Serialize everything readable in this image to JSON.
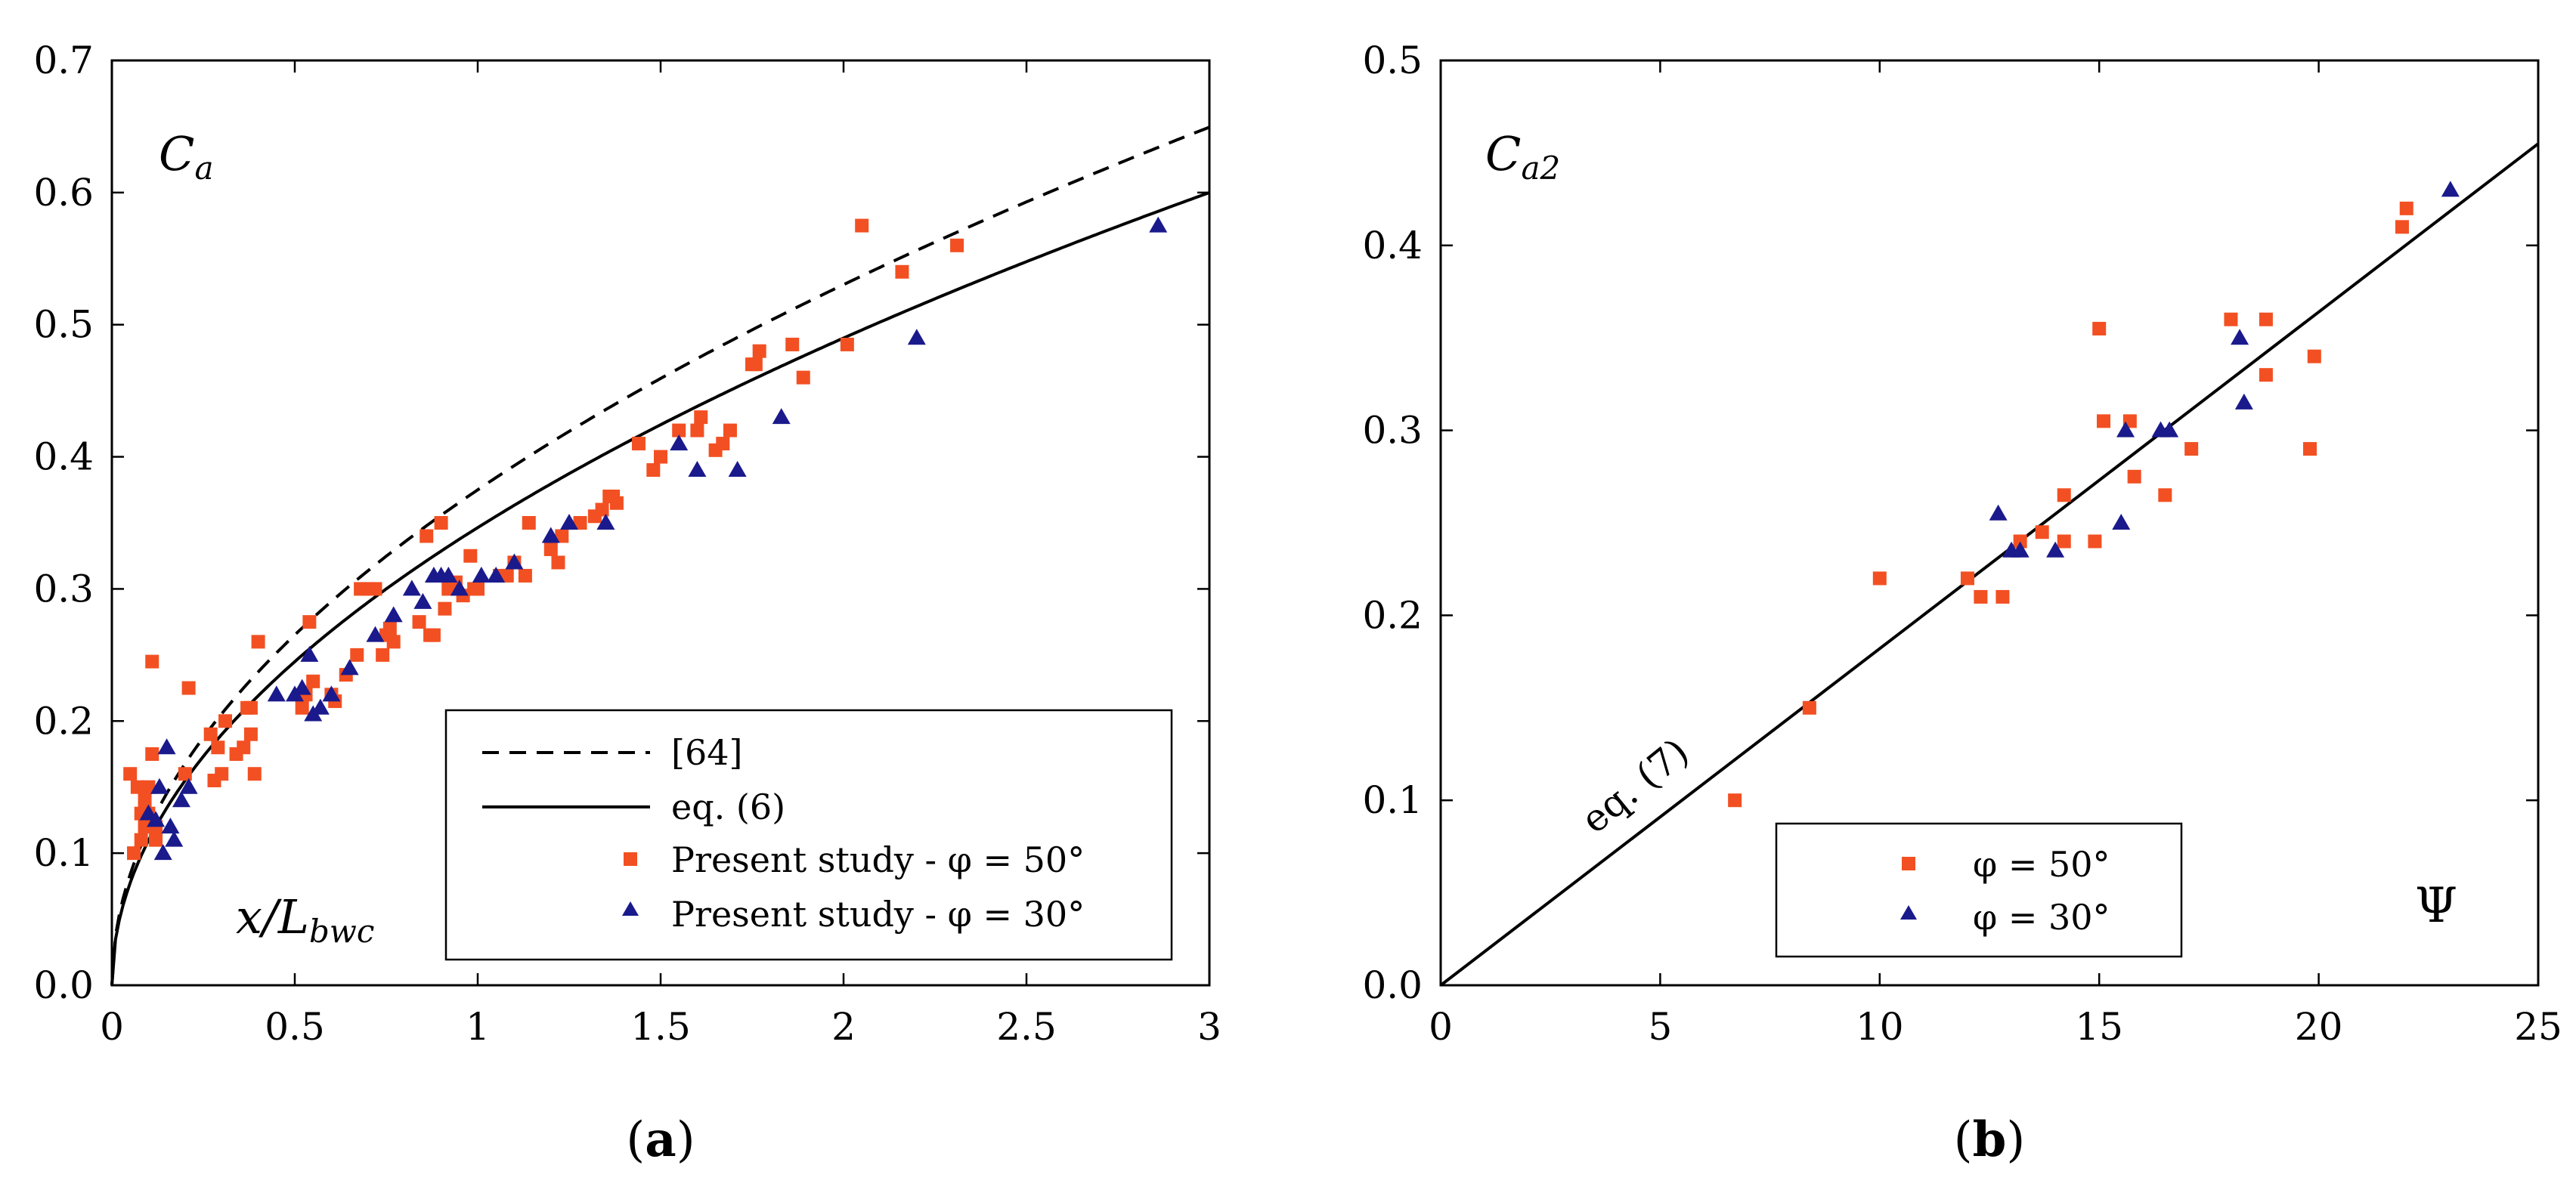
{
  "chart_data": [
    {
      "type": "scatter",
      "panel_label": "a",
      "corner_label": {
        "main": "C",
        "sub": "a"
      },
      "axis_label": {
        "main": "x/L",
        "sub": "bwc"
      },
      "xlim": [
        0,
        3
      ],
      "ylim": [
        0,
        0.7
      ],
      "xticks": [
        "0",
        "0.5",
        "1",
        "1.5",
        "2",
        "2.5",
        "3"
      ],
      "yticks": [
        "0.0",
        "0.1",
        "0.2",
        "0.3",
        "0.4",
        "0.5",
        "0.6",
        "0.7"
      ],
      "legend": [
        "[64]",
        "eq. (6)",
        "Present study - φ = 50°",
        "Present study - φ = 30°"
      ],
      "series": [
        {
          "name": "[64]",
          "kind": "curve",
          "style": "dashed",
          "coef": 0.375,
          "power": 0.5
        },
        {
          "name": "eq. (6)",
          "kind": "curve",
          "style": "solid",
          "coef": 0.3464,
          "power": 0.5
        },
        {
          "name": "Present study - φ = 50°",
          "kind": "points",
          "marker": "square",
          "color": "#f25022",
          "x": [
            0.05,
            0.06,
            0.07,
            0.08,
            0.08,
            0.09,
            0.09,
            0.1,
            0.1,
            0.11,
            0.11,
            0.12,
            0.12,
            0.2,
            0.21,
            0.27,
            0.28,
            0.29,
            0.3,
            0.31,
            0.34,
            0.36,
            0.37,
            0.38,
            0.38,
            0.39,
            0.4,
            0.52,
            0.53,
            0.54,
            0.55,
            0.6,
            0.61,
            0.64,
            0.67,
            0.68,
            0.7,
            0.72,
            0.74,
            0.75,
            0.76,
            0.77,
            0.84,
            0.86,
            0.87,
            0.88,
            0.9,
            0.91,
            0.92,
            0.94,
            0.96,
            0.98,
            0.99,
            1.0,
            1.06,
            1.08,
            1.1,
            1.13,
            1.14,
            1.2,
            1.22,
            1.23,
            1.28,
            1.32,
            1.34,
            1.36,
            1.37,
            1.38,
            1.44,
            1.48,
            1.5,
            1.55,
            1.6,
            1.61,
            1.65,
            1.67,
            1.69,
            1.75,
            1.76,
            1.77,
            1.86,
            1.89,
            2.01,
            2.05,
            2.16,
            2.31
          ],
          "y": [
            0.16,
            0.1,
            0.15,
            0.13,
            0.11,
            0.12,
            0.14,
            0.13,
            0.15,
            0.245,
            0.175,
            0.12,
            0.11,
            0.16,
            0.225,
            0.19,
            0.155,
            0.18,
            0.16,
            0.2,
            0.175,
            0.18,
            0.21,
            0.19,
            0.21,
            0.16,
            0.26,
            0.21,
            0.22,
            0.275,
            0.23,
            0.22,
            0.215,
            0.235,
            0.25,
            0.3,
            0.3,
            0.3,
            0.25,
            0.265,
            0.27,
            0.26,
            0.275,
            0.34,
            0.265,
            0.265,
            0.35,
            0.285,
            0.3,
            0.305,
            0.295,
            0.325,
            0.3,
            0.3,
            0.31,
            0.31,
            0.32,
            0.31,
            0.35,
            0.33,
            0.32,
            0.34,
            0.35,
            0.355,
            0.36,
            0.37,
            0.37,
            0.365,
            0.41,
            0.39,
            0.4,
            0.42,
            0.42,
            0.43,
            0.405,
            0.41,
            0.42,
            0.47,
            0.47,
            0.48,
            0.485,
            0.46,
            0.485,
            0.575,
            0.54,
            0.56
          ]
        },
        {
          "name": "Present study - φ = 30°",
          "kind": "points",
          "marker": "triangle",
          "color": "#1a1a8c",
          "x": [
            0.1,
            0.12,
            0.13,
            0.14,
            0.15,
            0.16,
            0.17,
            0.19,
            0.21,
            0.45,
            0.5,
            0.52,
            0.54,
            0.55,
            0.57,
            0.6,
            0.65,
            0.72,
            0.77,
            0.82,
            0.85,
            0.88,
            0.9,
            0.92,
            0.95,
            1.01,
            1.05,
            1.1,
            1.2,
            1.25,
            1.35,
            1.55,
            1.6,
            1.71,
            1.83,
            2.2,
            2.86
          ],
          "y": [
            0.13,
            0.125,
            0.15,
            0.1,
            0.18,
            0.12,
            0.11,
            0.14,
            0.15,
            0.22,
            0.22,
            0.225,
            0.25,
            0.205,
            0.21,
            0.22,
            0.24,
            0.265,
            0.28,
            0.3,
            0.29,
            0.31,
            0.31,
            0.31,
            0.3,
            0.31,
            0.31,
            0.32,
            0.34,
            0.35,
            0.35,
            0.41,
            0.39,
            0.39,
            0.43,
            0.49,
            0.575
          ]
        }
      ]
    },
    {
      "type": "scatter",
      "panel_label": "b",
      "corner_label": {
        "main": "C",
        "sub": "a2"
      },
      "axis_label": {
        "main": "Ψ",
        "sub": ""
      },
      "xlim": [
        0,
        25
      ],
      "ylim": [
        0,
        0.5
      ],
      "xticks": [
        "0",
        "5",
        "10",
        "15",
        "20",
        "25"
      ],
      "yticks": [
        "0.0",
        "0.1",
        "0.2",
        "0.3",
        "0.4",
        "0.5"
      ],
      "legend": [
        "φ = 50°",
        "φ = 30°"
      ],
      "series": [
        {
          "name": "eq. (7)",
          "kind": "line",
          "style": "solid",
          "slope": 0.0182,
          "label": "eq. (7)"
        },
        {
          "name": "φ = 50°",
          "kind": "points",
          "marker": "square",
          "color": "#f25022",
          "x": [
            6.7,
            8.4,
            10.0,
            12.0,
            12.3,
            12.8,
            13.2,
            13.7,
            14.2,
            14.2,
            14.9,
            15.0,
            15.1,
            15.7,
            15.8,
            16.5,
            17.1,
            18.0,
            18.8,
            18.8,
            19.8,
            19.9,
            21.9,
            22.0
          ],
          "y": [
            0.1,
            0.15,
            0.22,
            0.22,
            0.21,
            0.21,
            0.24,
            0.245,
            0.24,
            0.265,
            0.24,
            0.355,
            0.305,
            0.305,
            0.275,
            0.265,
            0.29,
            0.36,
            0.36,
            0.33,
            0.29,
            0.34,
            0.41,
            0.42
          ]
        },
        {
          "name": "φ = 30°",
          "kind": "points",
          "marker": "triangle",
          "color": "#1a1a8c",
          "x": [
            12.7,
            13.0,
            13.2,
            14.0,
            15.5,
            15.6,
            16.4,
            16.6,
            18.2,
            18.3,
            23.0
          ],
          "y": [
            0.255,
            0.235,
            0.235,
            0.235,
            0.25,
            0.3,
            0.3,
            0.3,
            0.35,
            0.315,
            0.43
          ]
        }
      ]
    }
  ]
}
